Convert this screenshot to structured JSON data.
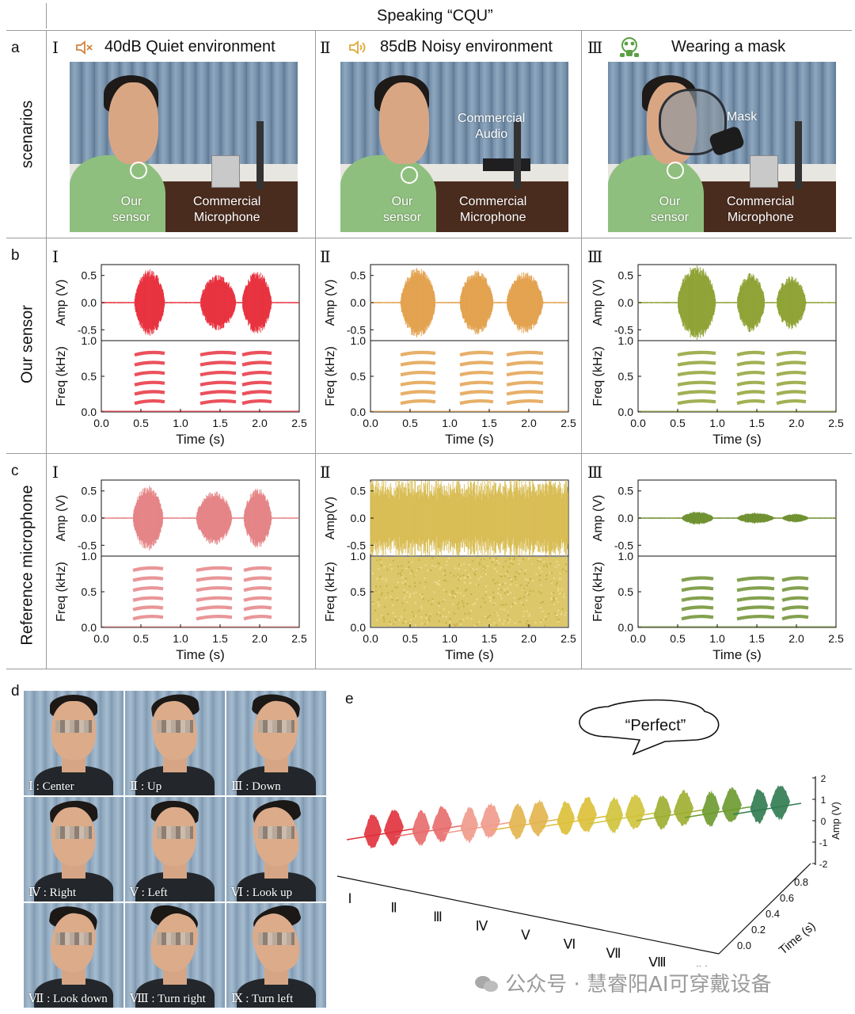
{
  "header": {
    "title": "Speaking “CQU”"
  },
  "panel_letters": {
    "a": "a",
    "b": "b",
    "c": "c",
    "d": "d",
    "e": "e"
  },
  "row_labels": {
    "scenarios": "scenarios",
    "our_sensor": "Our sensor",
    "reference": "Reference microphone"
  },
  "scenarios": [
    {
      "roman": "Ⅰ",
      "icon": "speaker-muted-icon",
      "icon_color": "#d2843e",
      "title": "40dB Quiet environment",
      "photo_labels": {
        "sensor": "Our\nsensor",
        "microphone": "Commercial\nMicrophone",
        "extra": ""
      }
    },
    {
      "roman": "Ⅱ",
      "icon": "speaker-loud-icon",
      "icon_color": "#e0a83a",
      "title": "85dB Noisy environment",
      "photo_labels": {
        "sensor": "Our\nsensor",
        "microphone": "Commercial\nMicrophone",
        "extra": "Commercial\nAudio"
      }
    },
    {
      "roman": "Ⅲ",
      "icon": "gas-mask-icon",
      "icon_color": "#5aa043",
      "title": "Wearing a mask",
      "photo_labels": {
        "sensor": "Our\nsensor",
        "microphone": "Commercial\nMicrophone",
        "extra": "Mask"
      }
    }
  ],
  "axis": {
    "amp_label": "Amp (V)",
    "amp_label_alt": "Amp(V)",
    "freq_label": "Freq (kHz)",
    "time_label": "Time (s)",
    "amp_ticks": [
      "0.5",
      "0.0",
      "-0.5"
    ],
    "freq_ticks": [
      "1.0",
      "0.5",
      "0.0"
    ],
    "time_ticks": [
      "0.0",
      "0.5",
      "1.0",
      "1.5",
      "2.0",
      "2.5"
    ]
  },
  "chart_data": [
    {
      "type": "line",
      "panel": "b",
      "scenario": "I",
      "color": "#e8323f",
      "xlim": [
        0,
        2.5
      ],
      "ylim_amp": [
        -0.7,
        0.7
      ],
      "ylim_freq": [
        0,
        1.0
      ],
      "syllables": [
        {
          "start": 0.42,
          "end": 0.8,
          "amp": 0.62
        },
        {
          "start": 1.25,
          "end": 1.7,
          "amp": 0.52
        },
        {
          "start": 1.78,
          "end": 2.15,
          "amp": 0.58
        }
      ]
    },
    {
      "type": "line",
      "panel": "b",
      "scenario": "II",
      "color": "#e3a24f",
      "xlim": [
        0,
        2.5
      ],
      "ylim_amp": [
        -0.7,
        0.7
      ],
      "ylim_freq": [
        0,
        1.0
      ],
      "syllables": [
        {
          "start": 0.38,
          "end": 0.82,
          "amp": 0.66
        },
        {
          "start": 1.13,
          "end": 1.55,
          "amp": 0.6
        },
        {
          "start": 1.72,
          "end": 2.18,
          "amp": 0.58
        }
      ]
    },
    {
      "type": "line",
      "panel": "b",
      "scenario": "III",
      "color": "#8fa336",
      "xlim": [
        0,
        2.5
      ],
      "ylim_amp": [
        -0.7,
        0.7
      ],
      "ylim_freq": [
        0,
        1.0
      ],
      "syllables": [
        {
          "start": 0.5,
          "end": 0.98,
          "amp": 0.7
        },
        {
          "start": 1.25,
          "end": 1.6,
          "amp": 0.55
        },
        {
          "start": 1.75,
          "end": 2.12,
          "amp": 0.5
        }
      ]
    },
    {
      "type": "line",
      "panel": "c",
      "scenario": "I",
      "color": "#e58486",
      "xlim": [
        0,
        2.5
      ],
      "ylim_amp": [
        -0.7,
        0.7
      ],
      "ylim_freq": [
        0,
        1.0
      ],
      "syllables": [
        {
          "start": 0.4,
          "end": 0.78,
          "amp": 0.6
        },
        {
          "start": 1.2,
          "end": 1.65,
          "amp": 0.5
        },
        {
          "start": 1.8,
          "end": 2.15,
          "amp": 0.55
        }
      ]
    },
    {
      "type": "line",
      "panel": "c",
      "scenario": "II",
      "color": "#d9bd55",
      "xlim": [
        0,
        2.5
      ],
      "ylim_amp": [
        -0.7,
        0.7
      ],
      "ylim_freq": [
        0,
        1.0
      ],
      "syllables": [],
      "noise_amp": 0.8
    },
    {
      "type": "line",
      "panel": "c",
      "scenario": "III",
      "color": "#6f9130",
      "xlim": [
        0,
        2.5
      ],
      "ylim_amp": [
        -0.7,
        0.7
      ],
      "ylim_freq": [
        0,
        1.0
      ],
      "syllables": [
        {
          "start": 0.55,
          "end": 0.95,
          "amp": 0.12
        },
        {
          "start": 1.25,
          "end": 1.72,
          "amp": 0.1
        },
        {
          "start": 1.82,
          "end": 2.15,
          "amp": 0.08
        }
      ]
    }
  ],
  "faces": [
    {
      "label": "Ⅰ : Center"
    },
    {
      "label": "Ⅱ : Up"
    },
    {
      "label": "Ⅲ : Down"
    },
    {
      "label": "Ⅳ : Right"
    },
    {
      "label": "Ⅴ : Left"
    },
    {
      "label": "Ⅵ : Look up"
    },
    {
      "label": "Ⅶ : Look down"
    },
    {
      "label": "Ⅷ : Turn right"
    },
    {
      "label": "Ⅸ : Turn left"
    }
  ],
  "panel_e": {
    "speech": "“Perfect”",
    "amp_axis_label": "Amp (V)",
    "amp_ticks": [
      "2",
      "1",
      "0",
      "-1",
      "-2"
    ],
    "time_axis_label": "Time (s)",
    "time_ticks": [
      "0.8",
      "0.6",
      "0.4",
      "0.2",
      "0.0"
    ],
    "categories": [
      "Ⅰ",
      "Ⅱ",
      "Ⅲ",
      "Ⅳ",
      "Ⅴ",
      "Ⅵ",
      "Ⅶ",
      "Ⅷ",
      "Ⅸ"
    ],
    "colors": [
      "#e0303a",
      "#e86a6a",
      "#ef9a8a",
      "#e2b44c",
      "#dcbf35",
      "#cfc23a",
      "#9dad2e",
      "#6c9a2c",
      "#2f7a4f"
    ]
  },
  "watermark": "公众号 · 慧睿阳AI可穿戴设备"
}
